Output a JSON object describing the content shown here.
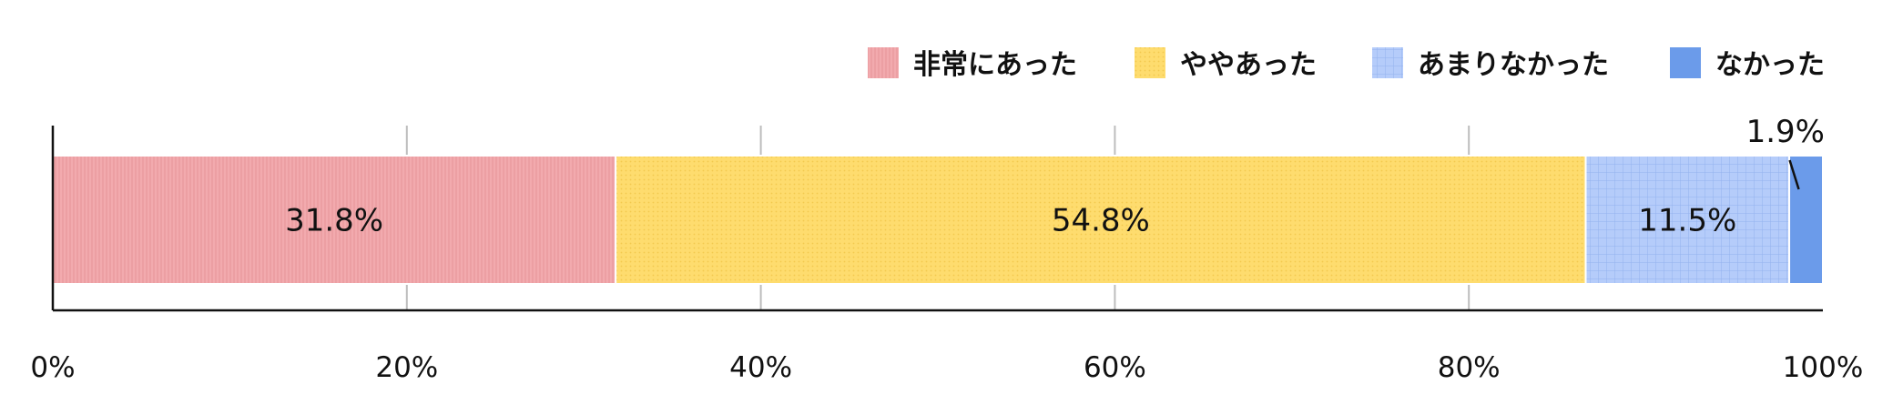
{
  "chart_data": {
    "type": "bar",
    "orientation": "horizontal",
    "stacked": true,
    "title": "",
    "xlabel": "",
    "ylabel": "",
    "xlim": [
      0,
      100
    ],
    "x_ticks": [
      "0%",
      "20%",
      "40%",
      "60%",
      "80%",
      "100%"
    ],
    "grid": true,
    "legend_position": "top-right",
    "series": [
      {
        "name": "非常にあった",
        "value": 31.8,
        "label": "31.8%",
        "color": "#F2AAAE",
        "pattern": "vertical-lines"
      },
      {
        "name": "ややあった",
        "value": 54.8,
        "label": "54.8%",
        "color": "#FEDC6E",
        "pattern": "dots"
      },
      {
        "name": "あまりなかった",
        "value": 11.5,
        "label": "11.5%",
        "color": "#B5CCFA",
        "pattern": "grid"
      },
      {
        "name": "なかった",
        "value": 1.9,
        "label": "1.9%",
        "color": "#6B9BEA",
        "pattern": "solid"
      }
    ]
  }
}
